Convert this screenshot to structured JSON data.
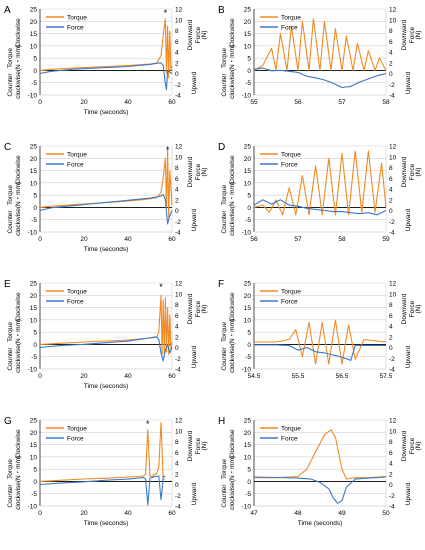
{
  "figure": {
    "colors": {
      "torque": "#F08A24",
      "force": "#3A78C9",
      "grid": "#cfcfcf",
      "axis": "#000000"
    },
    "panel_labels": [
      "A",
      "B",
      "C",
      "D",
      "E",
      "F",
      "G",
      "H"
    ]
  },
  "chart_data": [
    {
      "panel": "A",
      "type": "line",
      "xlabel": "Time (seconds)",
      "xlim": [
        0,
        60
      ],
      "xticks": [
        0,
        20,
        40,
        60
      ],
      "y_left_label": [
        "Torque",
        "(N・mm)"
      ],
      "y_left_side_top": "Clockwise",
      "y_left_side_bottom": [
        "Counter",
        "clockwise"
      ],
      "ylim_left": [
        -10,
        25
      ],
      "yticks_left": [
        -10,
        -5,
        0,
        5,
        10,
        15,
        20,
        25
      ],
      "y_right_label": [
        "Force",
        "(N)"
      ],
      "y_right_side_top": "Downward",
      "y_right_side_bottom": "Upward",
      "ylim_right": [
        -4,
        12
      ],
      "yticks_right": [
        -4,
        -2,
        0,
        2,
        4,
        6,
        8,
        10,
        12
      ],
      "legend": [
        "Torque",
        "Force"
      ],
      "annotation": "*",
      "annotation_x": 57,
      "series": [
        {
          "name": "Torque",
          "axis": "left",
          "x": [
            0,
            5,
            10,
            15,
            20,
            25,
            30,
            35,
            40,
            45,
            50,
            53,
            55,
            56,
            57,
            57.5,
            58,
            58.5,
            59,
            59.5,
            60
          ],
          "y": [
            0,
            0.4,
            0.7,
            1,
            1.2,
            1.4,
            1.6,
            1.8,
            2,
            2.3,
            2.6,
            3,
            6,
            14,
            21,
            -1,
            18,
            -3,
            16,
            0,
            2
          ]
        },
        {
          "name": "Force",
          "axis": "right",
          "x": [
            0,
            5,
            10,
            15,
            20,
            25,
            30,
            35,
            40,
            45,
            50,
            53,
            55,
            56,
            57,
            57.5,
            58,
            59,
            60
          ],
          "y": [
            0,
            0.4,
            0.6,
            0.8,
            0.9,
            1,
            1.1,
            1.2,
            1.3,
            1.5,
            1.7,
            1.9,
            2,
            1.5,
            -2,
            -3,
            0.5,
            0.3,
            0
          ]
        }
      ]
    },
    {
      "panel": "B",
      "type": "line",
      "xlabel": "",
      "xlim": [
        55,
        58
      ],
      "xticks": [
        55,
        56,
        57,
        58
      ],
      "y_left_label": [
        "Torque",
        "(N・mm)"
      ],
      "y_left_side_top": "Clockwise",
      "y_left_side_bottom": [
        "Counter",
        "clockwise"
      ],
      "ylim_left": [
        -10,
        25
      ],
      "yticks_left": [
        -10,
        -5,
        0,
        5,
        10,
        15,
        20,
        25
      ],
      "y_right_label": [
        "Force",
        "(N)"
      ],
      "y_right_side_top": "Downward",
      "y_right_side_bottom": "Upward",
      "ylim_right": [
        -4,
        12
      ],
      "yticks_right": [
        -4,
        -2,
        0,
        2,
        4,
        6,
        8,
        10,
        12
      ],
      "legend": [
        "Torque",
        "Force"
      ],
      "series": [
        {
          "name": "Torque",
          "axis": "left",
          "x": [
            55,
            55.2,
            55.4,
            55.5,
            55.6,
            55.75,
            55.85,
            56,
            56.1,
            56.25,
            56.35,
            56.5,
            56.6,
            56.75,
            56.85,
            57,
            57.1,
            57.25,
            57.35,
            57.5,
            57.6,
            57.75,
            57.85,
            58
          ],
          "y": [
            0,
            2,
            9,
            0,
            15,
            0,
            18,
            0,
            20,
            0,
            21,
            0,
            20,
            0,
            17,
            0,
            14,
            0,
            11,
            0,
            8,
            0,
            5,
            0
          ]
        },
        {
          "name": "Force",
          "axis": "right",
          "x": [
            55,
            55.2,
            55.4,
            55.6,
            55.8,
            56,
            56.2,
            56.4,
            56.6,
            56.8,
            57,
            57.2,
            57.4,
            57.6,
            57.8,
            58
          ],
          "y": [
            0.8,
            1,
            0.5,
            0.6,
            0.4,
            0.2,
            -0.5,
            -0.8,
            -1.2,
            -1.8,
            -2.6,
            -2.4,
            -1.6,
            -1,
            -0.4,
            0
          ]
        }
      ]
    },
    {
      "panel": "C",
      "type": "line",
      "xlabel": "Time (seconds)",
      "xlim": [
        0,
        60
      ],
      "xticks": [
        0,
        20,
        40,
        60
      ],
      "y_left_label": [
        "Torque",
        "(N・mm)"
      ],
      "y_left_side_top": "Clockwise",
      "y_left_side_bottom": [
        "Counter",
        "clockwise"
      ],
      "ylim_left": [
        -10,
        25
      ],
      "yticks_left": [
        -10,
        -5,
        0,
        5,
        10,
        15,
        20,
        25
      ],
      "y_right_label": [
        "Force",
        "(N)"
      ],
      "y_right_side_top": "Downward",
      "y_right_side_bottom": "Upward",
      "ylim_right": [
        -4,
        12
      ],
      "yticks_right": [
        -4,
        -2,
        0,
        2,
        4,
        6,
        8,
        10,
        12
      ],
      "legend": [
        "Torque",
        "Force"
      ],
      "annotation": "*",
      "annotation_x": 58,
      "series": [
        {
          "name": "Torque",
          "axis": "left",
          "x": [
            0,
            5,
            10,
            15,
            20,
            25,
            30,
            35,
            40,
            45,
            50,
            53,
            55,
            56,
            57,
            57.5,
            58,
            58.5,
            59,
            60
          ],
          "y": [
            0,
            0.5,
            0.8,
            1.1,
            1.4,
            1.7,
            2,
            2.3,
            2.6,
            3,
            3.5,
            4,
            6,
            12,
            20,
            0,
            24,
            -4,
            15,
            1
          ]
        },
        {
          "name": "Force",
          "axis": "right",
          "x": [
            0,
            5,
            10,
            15,
            20,
            25,
            30,
            35,
            40,
            45,
            50,
            53,
            55,
            56,
            57,
            58,
            59,
            60
          ],
          "y": [
            0,
            0.5,
            0.7,
            0.9,
            1.1,
            1.3,
            1.5,
            1.7,
            1.9,
            2.1,
            2.3,
            2.5,
            2.7,
            3,
            2,
            -2.5,
            -1,
            0
          ]
        }
      ]
    },
    {
      "panel": "D",
      "type": "line",
      "xlabel": "",
      "xlim": [
        56,
        59
      ],
      "xticks": [
        56,
        57,
        58,
        59
      ],
      "y_left_label": [
        "Torque",
        "(N・mm)"
      ],
      "y_left_side_top": "Clockwise",
      "y_left_side_bottom": [
        "Counter",
        "clockwise"
      ],
      "ylim_left": [
        -10,
        25
      ],
      "yticks_left": [
        -10,
        -5,
        0,
        5,
        10,
        15,
        20,
        25
      ],
      "y_right_label": [
        "Force",
        "(N)"
      ],
      "y_right_side_top": "Downward",
      "y_right_side_bottom": "Upward",
      "ylim_right": [
        -4,
        12
      ],
      "yticks_right": [
        -4,
        -2,
        0,
        2,
        4,
        6,
        8,
        10,
        12
      ],
      "legend": [
        "Torque",
        "Force"
      ],
      "series": [
        {
          "name": "Torque",
          "axis": "left",
          "x": [
            56,
            56.2,
            56.35,
            56.5,
            56.65,
            56.8,
            56.95,
            57.1,
            57.25,
            57.4,
            57.55,
            57.7,
            57.85,
            58,
            58.15,
            58.3,
            58.45,
            58.6,
            58.75,
            58.9,
            59
          ],
          "y": [
            0,
            1,
            -2,
            3,
            -3,
            8,
            -3,
            13,
            -3,
            17,
            -3,
            20,
            -3,
            22,
            -3,
            23,
            -2,
            23,
            -2,
            18,
            0
          ]
        },
        {
          "name": "Force",
          "axis": "right",
          "x": [
            56,
            56.2,
            56.4,
            56.6,
            56.8,
            57,
            57.2,
            57.4,
            57.6,
            57.8,
            58,
            58.2,
            58.4,
            58.6,
            58.8,
            59
          ],
          "y": [
            1,
            2,
            1.2,
            2,
            1,
            0.8,
            0.4,
            0.2,
            0,
            -0.2,
            -0.2,
            -0.4,
            -0.6,
            -0.4,
            -0.8,
            0
          ]
        }
      ]
    },
    {
      "panel": "E",
      "type": "line",
      "xlabel": "Time (seconds)",
      "xlim": [
        0,
        60
      ],
      "xticks": [
        0,
        20,
        40,
        60
      ],
      "y_left_label": [
        "Torque",
        "(N・mm)"
      ],
      "y_left_side_top": "Clockwise",
      "y_left_side_bottom": [
        "Counter",
        "clockwise"
      ],
      "ylim_left": [
        -10,
        25
      ],
      "yticks_left": [
        -10,
        -5,
        0,
        5,
        10,
        15,
        20,
        25
      ],
      "y_right_label": [
        "Force",
        "(N)"
      ],
      "y_right_side_top": "Downward",
      "y_right_side_bottom": "Upward",
      "ylim_right": [
        -4,
        12
      ],
      "yticks_right": [
        -4,
        -2,
        0,
        2,
        4,
        6,
        8,
        10,
        12
      ],
      "legend": [
        "Torque",
        "Force"
      ],
      "annotation": "*",
      "annotation_x": 55,
      "series": [
        {
          "name": "Torque",
          "axis": "left",
          "x": [
            0,
            10,
            20,
            30,
            40,
            45,
            50,
            53,
            54,
            55,
            55.5,
            56,
            56.5,
            57,
            57.5,
            58,
            58.5,
            59,
            59.5,
            60
          ],
          "y": [
            0,
            0.5,
            1,
            1.4,
            1.8,
            2.2,
            2.6,
            3,
            5,
            20,
            -4,
            18,
            -4,
            19,
            -3,
            15,
            -4,
            12,
            -2,
            1
          ]
        },
        {
          "name": "Force",
          "axis": "right",
          "x": [
            0,
            10,
            20,
            30,
            40,
            45,
            50,
            53,
            54,
            55,
            56,
            57,
            58,
            59,
            60
          ],
          "y": [
            0,
            0.4,
            0.6,
            0.9,
            1.2,
            1.5,
            1.8,
            2,
            1.5,
            -1,
            -2.5,
            -0.5,
            0.5,
            -1,
            0
          ]
        }
      ]
    },
    {
      "panel": "F",
      "type": "line",
      "xlabel": "",
      "xlim": [
        54.5,
        57.5
      ],
      "xticks": [
        54.5,
        55.5,
        56.5,
        57.5
      ],
      "y_left_label": [
        "Torque",
        "(N・mm)"
      ],
      "y_left_side_top": "Clockwise",
      "y_left_side_bottom": [
        "Counter",
        "clockwise"
      ],
      "ylim_left": [
        -10,
        25
      ],
      "yticks_left": [
        -10,
        -5,
        0,
        5,
        10,
        15,
        20,
        25
      ],
      "y_right_label": [
        "Force",
        "(N)"
      ],
      "y_right_side_top": "Downward",
      "y_right_side_bottom": "Upward",
      "ylim_right": [
        -4,
        12
      ],
      "yticks_right": [
        -4,
        -2,
        0,
        2,
        4,
        6,
        8,
        10,
        12
      ],
      "legend": [
        "Torque",
        "Force"
      ],
      "series": [
        {
          "name": "Torque",
          "axis": "left",
          "x": [
            54.5,
            55,
            55.3,
            55.45,
            55.6,
            55.75,
            55.9,
            56.05,
            56.2,
            56.35,
            56.5,
            56.65,
            56.8,
            57,
            57.5
          ],
          "y": [
            1,
            1,
            2,
            6,
            -5,
            9,
            -8,
            9,
            -8,
            10,
            -8,
            8,
            -6,
            2,
            1
          ]
        },
        {
          "name": "Force",
          "axis": "right",
          "x": [
            54.5,
            55,
            55.3,
            55.5,
            55.7,
            55.9,
            56.1,
            56.3,
            56.5,
            56.7,
            56.8,
            57,
            57.5
          ],
          "y": [
            0.5,
            0.5,
            0.4,
            -0.5,
            0,
            -0.8,
            -1,
            -1.4,
            -1.8,
            -2.4,
            0.4,
            0.4,
            0.4
          ]
        }
      ]
    },
    {
      "panel": "G",
      "type": "line",
      "xlabel": "Time (seconds)",
      "xlim": [
        0,
        60
      ],
      "xticks": [
        0,
        20,
        40,
        60
      ],
      "y_left_label": [
        "Torque",
        "(N・mm)"
      ],
      "y_left_side_top": "Clockwise",
      "y_left_side_bottom": [
        "Counter",
        "clockwise"
      ],
      "ylim_left": [
        -10,
        25
      ],
      "yticks_left": [
        -10,
        -5,
        0,
        5,
        10,
        15,
        20,
        25
      ],
      "y_right_label": [
        "Force",
        "(N)"
      ],
      "y_right_side_top": "Downward",
      "y_right_side_bottom": "Upward",
      "ylim_right": [
        -4,
        12
      ],
      "yticks_right": [
        -4,
        -2,
        0,
        2,
        4,
        6,
        8,
        10,
        12
      ],
      "legend": [
        "Torque",
        "Force"
      ],
      "annotation": "*",
      "annotation_x": 49,
      "series": [
        {
          "name": "Torque",
          "axis": "left",
          "x": [
            0,
            10,
            20,
            30,
            40,
            45,
            47,
            48,
            49,
            50,
            51,
            52,
            53,
            54,
            55,
            56,
            57
          ],
          "y": [
            0,
            0.5,
            1,
            1.3,
            1.8,
            2,
            2.2,
            3,
            21,
            2,
            2,
            3,
            3,
            6,
            24,
            1,
            1
          ]
        },
        {
          "name": "Force",
          "axis": "right",
          "x": [
            0,
            10,
            20,
            30,
            40,
            45,
            47,
            48,
            49,
            50,
            51,
            52,
            53,
            54,
            55,
            55.5,
            56,
            57
          ],
          "y": [
            0,
            0.3,
            0.5,
            0.8,
            1,
            1.2,
            1.3,
            1,
            -3.8,
            1.2,
            1.3,
            1.5,
            1.5,
            1.6,
            -2.8,
            -1,
            1.5,
            1.5
          ]
        }
      ]
    },
    {
      "panel": "H",
      "type": "line",
      "xlabel": "Time (seconds)",
      "xlim": [
        47,
        50
      ],
      "xticks": [
        47,
        48,
        49,
        50
      ],
      "y_left_label": [
        "Torque",
        "(N・mm)"
      ],
      "y_left_side_top": "Clockwise",
      "y_left_side_bottom": [
        "Counter",
        "clockwise"
      ],
      "ylim_left": [
        -10,
        25
      ],
      "yticks_left": [
        -10,
        -5,
        0,
        5,
        10,
        15,
        20,
        25
      ],
      "y_right_label": [
        "Force",
        "(N)"
      ],
      "y_right_side_top": "Downward",
      "y_right_side_bottom": "Upward",
      "ylim_right": [
        -4,
        12
      ],
      "yticks_right": [
        -4,
        -2,
        0,
        2,
        4,
        6,
        8,
        10,
        12
      ],
      "legend": [
        "Torque",
        "Force"
      ],
      "series": [
        {
          "name": "Torque",
          "axis": "left",
          "x": [
            47,
            47.5,
            48,
            48.2,
            48.4,
            48.6,
            48.75,
            48.85,
            49,
            49.1,
            49.3,
            49.6,
            50
          ],
          "y": [
            1.5,
            1.5,
            2,
            5,
            12,
            19,
            21,
            18,
            5,
            1,
            1.5,
            1.5,
            2
          ]
        },
        {
          "name": "Force",
          "axis": "right",
          "x": [
            47,
            47.5,
            48,
            48.3,
            48.5,
            48.7,
            48.8,
            48.9,
            49,
            49.1,
            49.3,
            49.6,
            50
          ],
          "y": [
            1.4,
            1.3,
            1.2,
            1,
            0.4,
            -0.8,
            -2.5,
            -3.5,
            -3,
            -0.5,
            1,
            1.2,
            1.4
          ]
        }
      ]
    }
  ]
}
